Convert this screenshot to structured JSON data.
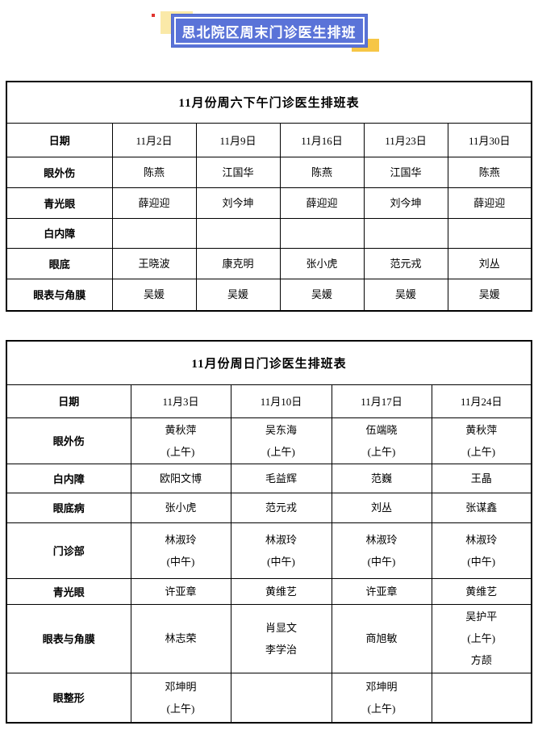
{
  "banner": {
    "title": "思北院区周末门诊医生排班"
  },
  "colors": {
    "banner_blue": "#5a73d8",
    "banner_inner_border": "#ffffff",
    "accent_pale_yellow": "#fae9a8",
    "accent_gold": "#f6c646",
    "accent_red": "#e0342f",
    "table_border": "#000000",
    "text": "#000000"
  },
  "saturday_table": {
    "title": "11月份周六下午门诊医生排班表",
    "header": [
      "日期",
      "11月2日",
      "11月9日",
      "11月16日",
      "11月23日",
      "11月30日"
    ],
    "rows": [
      {
        "label": "眼外伤",
        "cells": [
          [
            "陈燕"
          ],
          [
            "江国华"
          ],
          [
            "陈燕"
          ],
          [
            "江国华"
          ],
          [
            "陈燕"
          ]
        ]
      },
      {
        "label": "青光眼",
        "cells": [
          [
            "薛迎迎"
          ],
          [
            "刘今坤"
          ],
          [
            "薛迎迎"
          ],
          [
            "刘今坤"
          ],
          [
            "薛迎迎"
          ]
        ]
      },
      {
        "label": "白内障",
        "cells": [
          [],
          [],
          [],
          [],
          []
        ]
      },
      {
        "label": "眼底",
        "cells": [
          [
            "王晓波"
          ],
          [
            "康克明"
          ],
          [
            "张小虎"
          ],
          [
            "范元戎"
          ],
          [
            "刘丛"
          ]
        ]
      },
      {
        "label": "眼表与角膜",
        "cells": [
          [
            "吴媛"
          ],
          [
            "吴媛"
          ],
          [
            "吴媛"
          ],
          [
            "吴媛"
          ],
          [
            "吴媛"
          ]
        ]
      }
    ]
  },
  "sunday_table": {
    "title": "11月份周日门诊医生排班表",
    "header": [
      "日期",
      "11月3日",
      "11月10日",
      "11月17日",
      "11月24日"
    ],
    "rows": [
      {
        "label": "眼外伤",
        "cells": [
          [
            "黄秋萍",
            "(上午)"
          ],
          [
            "吴东海",
            "(上午)"
          ],
          [
            "伍端晓",
            "(上午)"
          ],
          [
            "黄秋萍",
            "(上午)"
          ]
        ]
      },
      {
        "label": "白内障",
        "cells": [
          [
            "欧阳文博"
          ],
          [
            "毛益辉"
          ],
          [
            "范巍"
          ],
          [
            "王晶"
          ]
        ]
      },
      {
        "label": "眼底病",
        "cells": [
          [
            "张小虎"
          ],
          [
            "范元戎"
          ],
          [
            "刘丛"
          ],
          [
            "张谋鑫"
          ]
        ]
      },
      {
        "label": "门诊部",
        "cells": [
          [
            "林淑玲",
            "(中午)"
          ],
          [
            "林淑玲",
            "(中午)"
          ],
          [
            "林淑玲",
            "(中午)"
          ],
          [
            "林淑玲",
            "(中午)"
          ]
        ]
      },
      {
        "label": "青光眼",
        "cells": [
          [
            "许亚章"
          ],
          [
            "黄维艺"
          ],
          [
            "许亚章"
          ],
          [
            "黄维艺"
          ]
        ]
      },
      {
        "label": "眼表与角膜",
        "cells": [
          [
            "林志荣"
          ],
          [
            "肖显文",
            "李学治"
          ],
          [
            "商旭敏"
          ],
          [
            "吴护平",
            "(上午)",
            "方颉"
          ]
        ]
      },
      {
        "label": "眼整形",
        "cells": [
          [
            "邓坤明",
            "(上午)"
          ],
          [],
          [
            "邓坤明",
            "(上午)"
          ],
          []
        ]
      }
    ]
  }
}
